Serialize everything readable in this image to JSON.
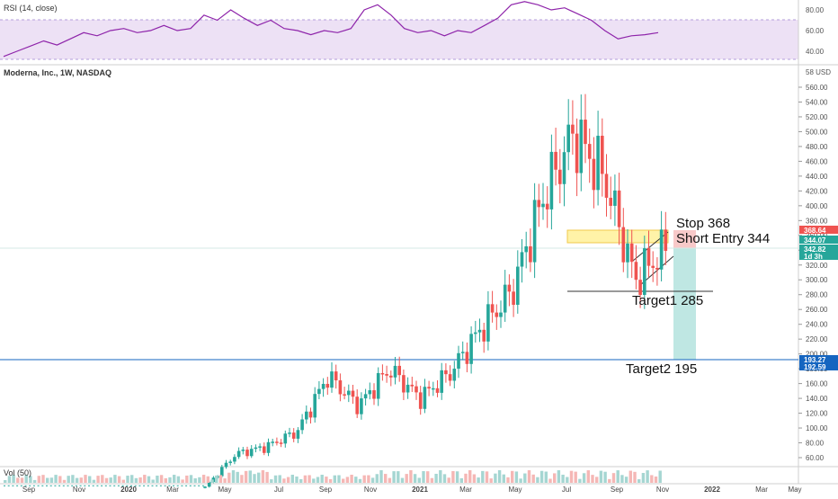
{
  "rsi_panel": {
    "label": "RSI (14, close)",
    "axis_ticks": [
      "80.00",
      "60.00",
      "40.00"
    ]
  },
  "main_panel": {
    "symbol_label": "Moderna, Inc., 1W, NASDAQ",
    "currency_label": "58 USD",
    "price_badges": [
      {
        "text": "368.64",
        "color": "#ef5350"
      },
      {
        "text": "344.07",
        "color": "#26a69a"
      },
      {
        "text": "342.82",
        "color": "#26a69a"
      },
      {
        "text": "1d 3h",
        "color": "#26a69a"
      },
      {
        "text": "193.27",
        "color": "#1565c0"
      },
      {
        "text": "192.59",
        "color": "#1565c0"
      }
    ],
    "annotations": {
      "stop": "Stop 368",
      "entry": "Short Entry 344",
      "target1": "Target1 285",
      "target2": "Target2 195"
    }
  },
  "volume_panel": {
    "label": "Vol (50)"
  },
  "x_axis_labels": [
    "Sep",
    "Nov",
    "2020",
    "Mar",
    "May",
    "Jul",
    "Sep",
    "Nov",
    "2021",
    "Mar",
    "May",
    "Jul",
    "Sep",
    "Nov",
    "2022",
    "Mar",
    "May"
  ],
  "colors": {
    "up": "#26a69a",
    "down": "#ef5350",
    "rsi_line": "#8e24aa",
    "rsi_band": "#e7d4f2",
    "level_line": "#1565c0"
  },
  "chart_data": [
    {
      "type": "candlestick",
      "title": "Moderna, Inc., 1W, NASDAQ",
      "ylabel": "USD",
      "ylim": [
        50,
        580
      ],
      "y_ticks": [
        560,
        540,
        520,
        500,
        480,
        460,
        440,
        420,
        400,
        380,
        360,
        340,
        320,
        300,
        280,
        260,
        240,
        220,
        200,
        180,
        160,
        140,
        120,
        100,
        80,
        60
      ],
      "approx_close_path": [
        {
          "x": "2020-01",
          "close": 20
        },
        {
          "x": "2020-05",
          "close": 65
        },
        {
          "x": "2020-07",
          "close": 75
        },
        {
          "x": "2020-11",
          "close": 95
        },
        {
          "x": "2020-12",
          "close": 170
        },
        {
          "x": "2021-01",
          "close": 130
        },
        {
          "x": "2021-02",
          "close": 180
        },
        {
          "x": "2021-03",
          "close": 140
        },
        {
          "x": "2021-05",
          "close": 175
        },
        {
          "x": "2021-06",
          "close": 235
        },
        {
          "x": "2021-07",
          "close": 285
        },
        {
          "x": "2021-08",
          "close": 410
        },
        {
          "x": "2021-08-10",
          "close": 497
        },
        {
          "x": "2021-09",
          "close": 440
        },
        {
          "x": "2021-10",
          "close": 300
        },
        {
          "x": "2021-11",
          "close": 342.82
        }
      ],
      "levels": [
        {
          "label": "Stop 368",
          "value": 368
        },
        {
          "label": "Short Entry 344",
          "value": 344
        },
        {
          "label": "Target1 285",
          "value": 285
        },
        {
          "label": "Target2 195",
          "value": 195
        }
      ]
    },
    {
      "type": "line",
      "title": "RSI (14, close)",
      "ylim": [
        30,
        90
      ],
      "band": [
        30,
        70
      ],
      "approx_values": [
        35,
        40,
        45,
        50,
        46,
        52,
        58,
        55,
        60,
        62,
        58,
        60,
        65,
        60,
        62,
        75,
        70,
        80,
        72,
        65,
        70,
        62,
        60,
        56,
        60,
        58,
        62,
        80,
        85,
        75,
        62,
        58,
        60,
        55,
        60,
        58,
        65,
        72,
        85,
        88,
        85,
        80,
        82,
        76,
        70,
        60,
        52,
        55,
        56,
        58
      ]
    },
    {
      "type": "bar",
      "title": "Vol (50)"
    }
  ]
}
